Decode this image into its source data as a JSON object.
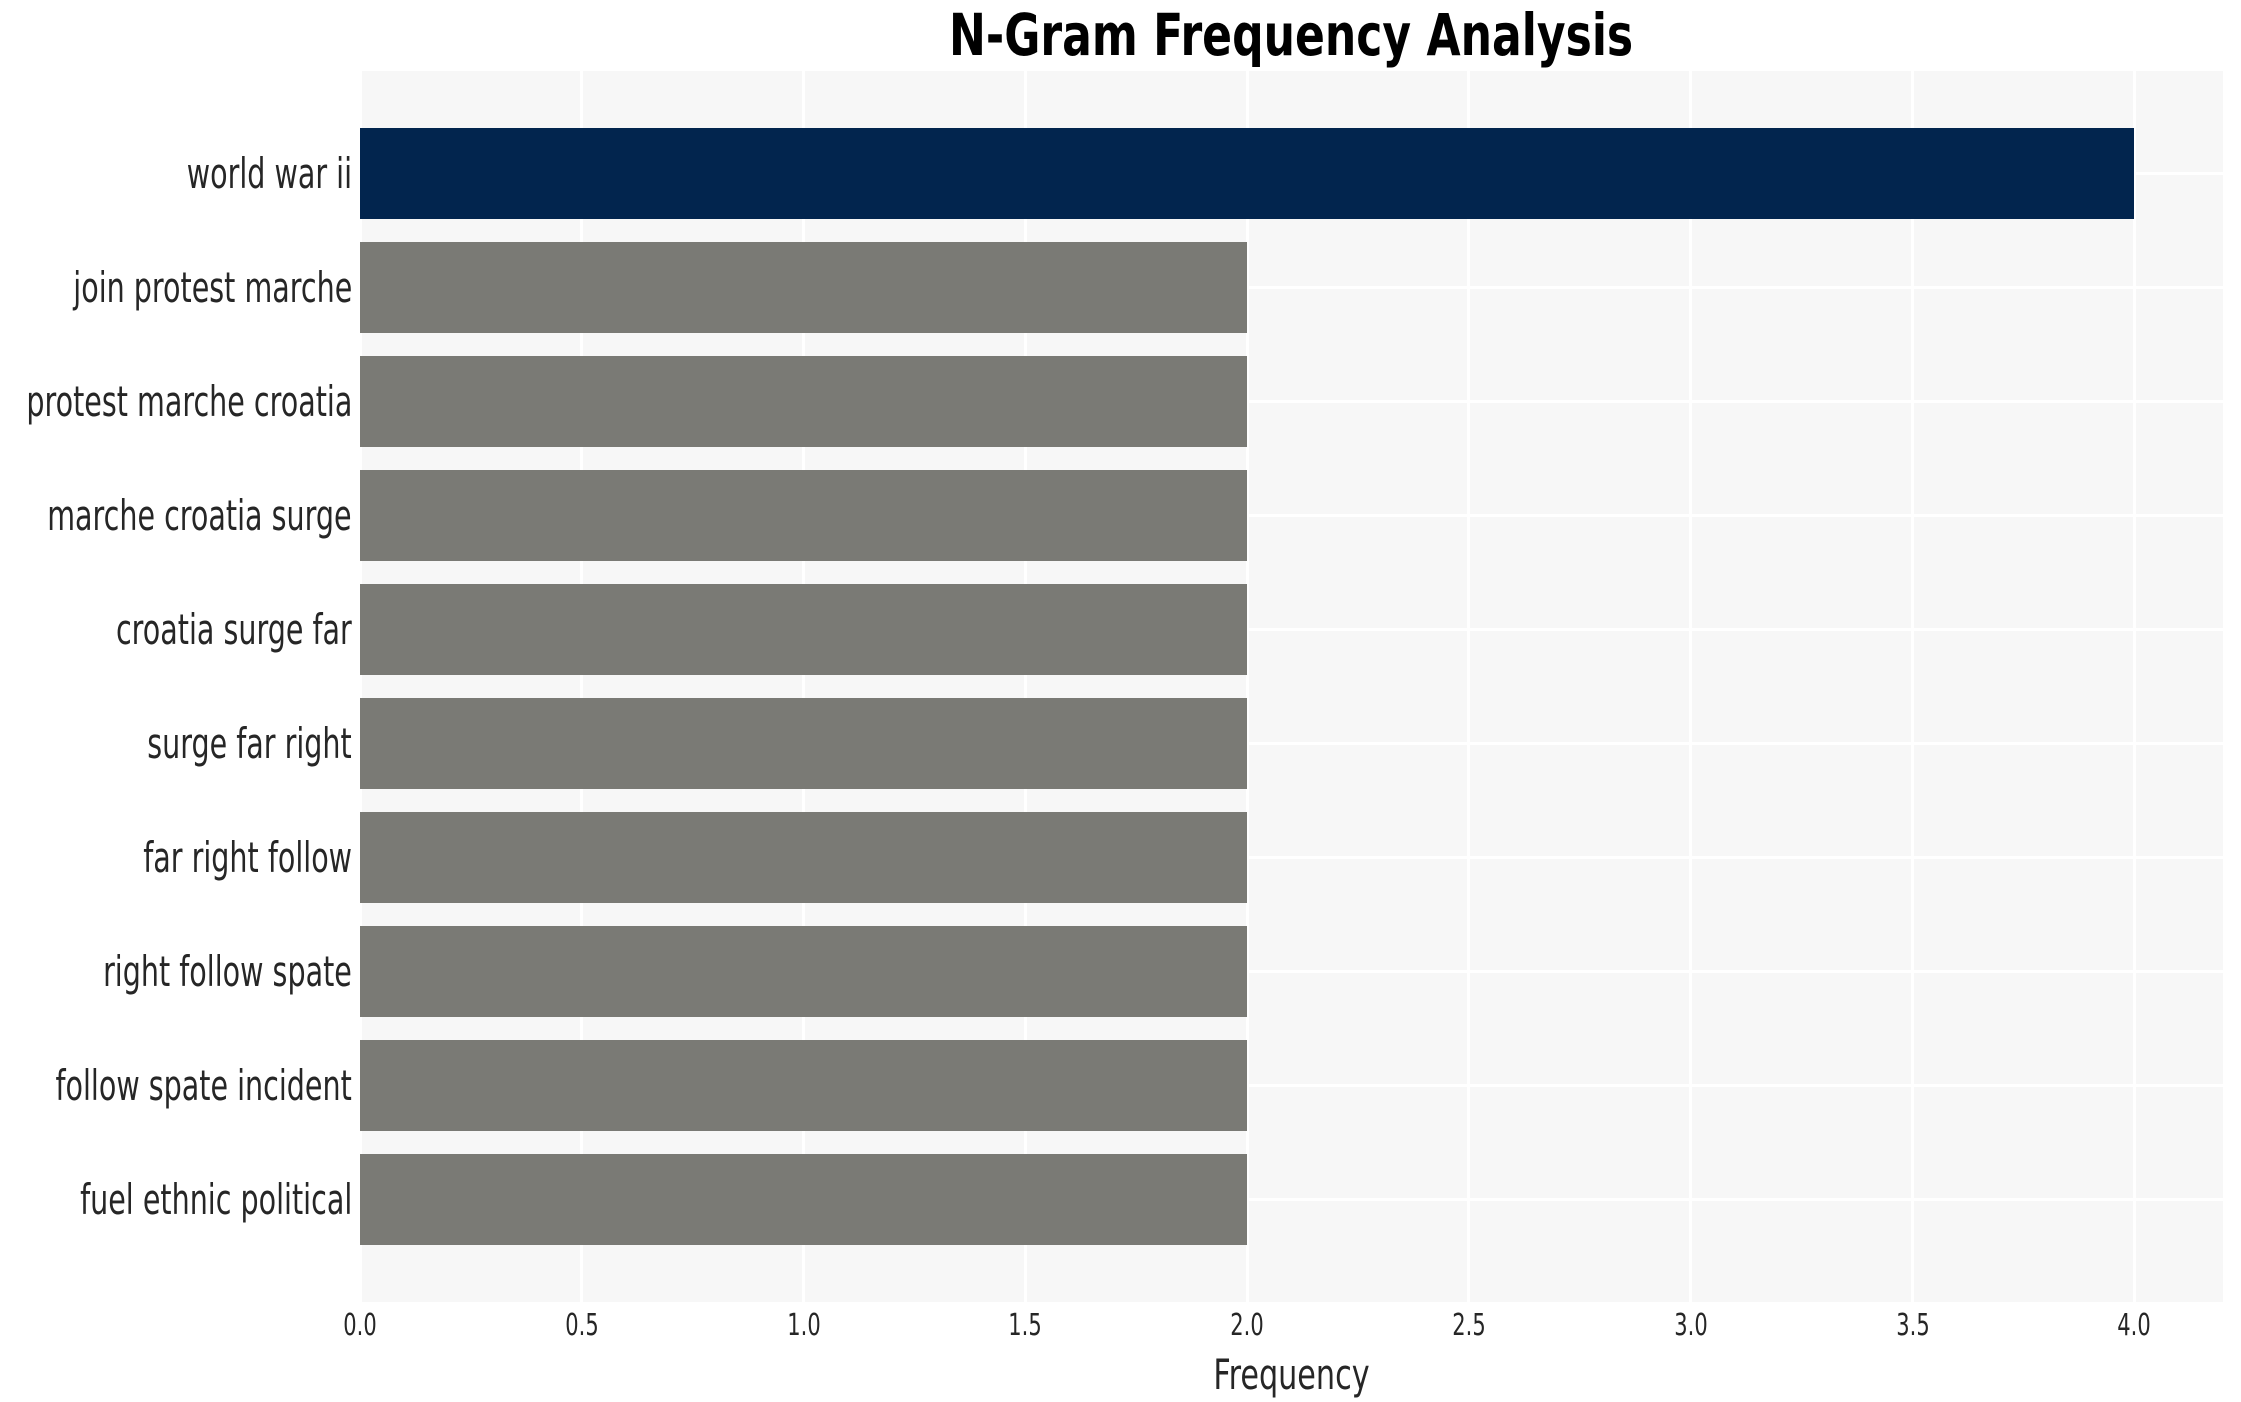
{
  "chart_data": {
    "type": "bar",
    "orientation": "horizontal",
    "title": "N-Gram Frequency Analysis",
    "xlabel": "Frequency",
    "ylabel": "",
    "categories": [
      "world war ii",
      "join protest marche",
      "protest marche croatia",
      "marche croatia surge",
      "croatia surge far",
      "surge far right",
      "far right follow",
      "right follow spate",
      "follow spate incident",
      "fuel ethnic political"
    ],
    "values": [
      4,
      2,
      2,
      2,
      2,
      2,
      2,
      2,
      2,
      2
    ],
    "xlim": [
      0,
      4.2
    ],
    "xticks": [
      0.0,
      0.5,
      1.0,
      1.5,
      2.0,
      2.5,
      3.0,
      3.5,
      4.0
    ],
    "xtick_labels": [
      "0.0",
      "0.5",
      "1.0",
      "1.5",
      "2.0",
      "2.5",
      "3.0",
      "3.5",
      "4.0"
    ],
    "grid": true,
    "legend": false,
    "bar_colors": [
      "#02254e",
      "#7a7a75",
      "#7a7a75",
      "#7a7a75",
      "#7a7a75",
      "#7a7a75",
      "#7a7a75",
      "#7a7a75",
      "#7a7a75",
      "#7a7a75"
    ],
    "colors": {
      "highlight_bar": "#02254e",
      "default_bar": "#7a7a75",
      "plot_background": "#f7f7f7",
      "gridline": "#ffffff",
      "figure_background": "#ffffff",
      "text": "#262626"
    }
  }
}
